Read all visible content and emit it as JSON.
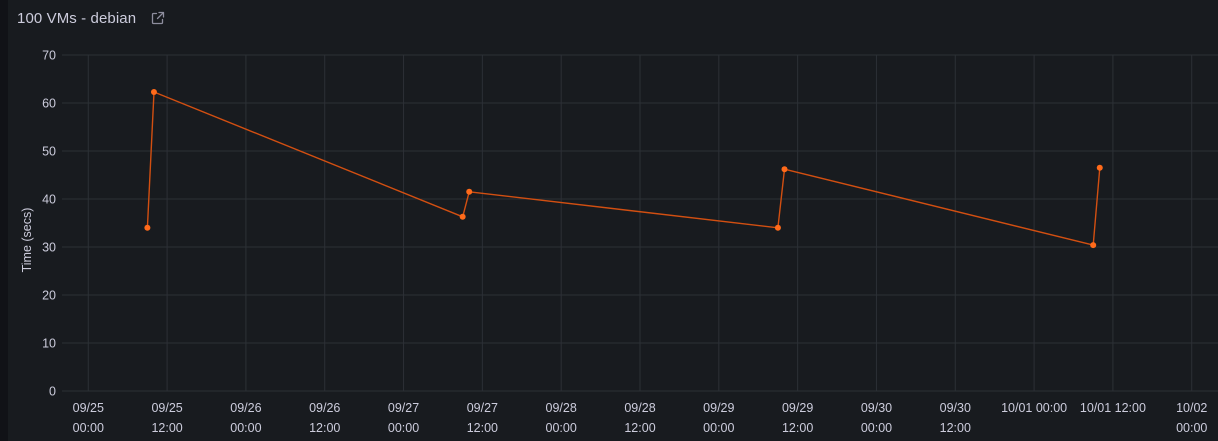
{
  "panel": {
    "title": "100 VMs - debian",
    "link_icon": "external-link-icon"
  },
  "colors": {
    "background": "#181b1f",
    "grid": "#2c3036",
    "text": "#ccccdc",
    "series": "#ff6a1a",
    "series_line": "#d24f11"
  },
  "chart_data": {
    "type": "line",
    "title": "100 VMs - debian",
    "ylabel": "Time (secs)",
    "xlabel": "",
    "ylim": [
      0,
      70
    ],
    "yticks": [
      0,
      10,
      20,
      30,
      40,
      50,
      60,
      70
    ],
    "xlim": [
      "09/24 20:00",
      "10/02 04:00"
    ],
    "xticks": [
      {
        "t": "09/25 00:00",
        "line1": "09/25",
        "line2": "00:00"
      },
      {
        "t": "09/25 12:00",
        "line1": "09/25",
        "line2": "12:00"
      },
      {
        "t": "09/26 00:00",
        "line1": "09/26",
        "line2": "00:00"
      },
      {
        "t": "09/26 12:00",
        "line1": "09/26",
        "line2": "12:00"
      },
      {
        "t": "09/27 00:00",
        "line1": "09/27",
        "line2": "00:00"
      },
      {
        "t": "09/27 12:00",
        "line1": "09/27",
        "line2": "12:00"
      },
      {
        "t": "09/28 00:00",
        "line1": "09/28",
        "line2": "00:00"
      },
      {
        "t": "09/28 12:00",
        "line1": "09/28",
        "line2": "12:00"
      },
      {
        "t": "09/29 00:00",
        "line1": "09/29",
        "line2": "00:00"
      },
      {
        "t": "09/29 12:00",
        "line1": "09/29",
        "line2": "12:00"
      },
      {
        "t": "09/30 00:00",
        "line1": "09/30",
        "line2": "00:00"
      },
      {
        "t": "09/30 12:00",
        "line1": "09/30",
        "line2": "12:00"
      },
      {
        "t": "10/01 00:00",
        "line1": "10/01 00:00",
        "line2": ""
      },
      {
        "t": "10/01 12:00",
        "line1": "10/01 12:00",
        "line2": ""
      },
      {
        "t": "10/02 00:00",
        "line1": "10/02",
        "line2": "00:00"
      }
    ],
    "series": [
      {
        "points": [
          {
            "t": "09/25 09:00",
            "y": 34
          },
          {
            "t": "09/25 10:00",
            "y": 62.3
          },
          {
            "t": "09/27 09:00",
            "y": 36.3
          },
          {
            "t": "09/27 10:00",
            "y": 41.5
          },
          {
            "t": "09/29 09:00",
            "y": 34
          },
          {
            "t": "09/29 10:00",
            "y": 46.2
          },
          {
            "t": "10/01 09:00",
            "y": 30.4
          },
          {
            "t": "10/01 10:00",
            "y": 46.5
          }
        ]
      }
    ],
    "grid": true,
    "legend": "none"
  }
}
